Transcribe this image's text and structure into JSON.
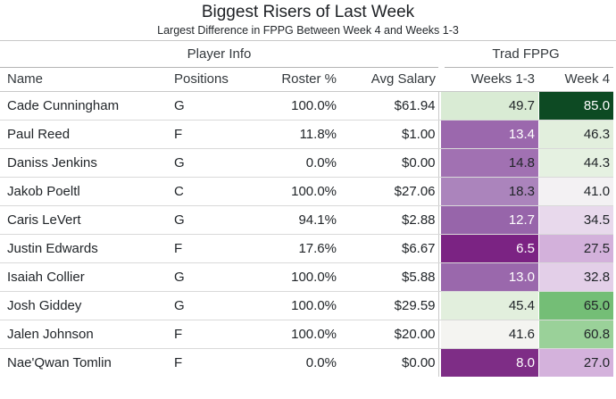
{
  "title": "Biggest Risers of Last Week",
  "subtitle": "Largest Difference in FPPG Between Week 4 and Weeks 1-3",
  "table": {
    "groups": [
      {
        "label": "Player Info"
      },
      {
        "label": "Trad FPPG"
      }
    ],
    "columns": [
      "Name",
      "Positions",
      "Roster %",
      "Avg Salary",
      "Weeks 1-3",
      "Week 4"
    ],
    "rows": [
      {
        "name": "Cade Cunningham",
        "positions": "G",
        "roster_pct": "100.0%",
        "avg_salary": "$61.94",
        "weeks_1_3": {
          "value": "49.7",
          "bg": "#d9ebd4",
          "fg": "#212529"
        },
        "week_4": {
          "value": "85.0",
          "bg": "#0d4a23",
          "fg": "#ffffff"
        }
      },
      {
        "name": "Paul Reed",
        "positions": "F",
        "roster_pct": "11.8%",
        "avg_salary": "$1.00",
        "weeks_1_3": {
          "value": "13.4",
          "bg": "#9b68ad",
          "fg": "#ffffff"
        },
        "week_4": {
          "value": "46.3",
          "bg": "#e2efdd",
          "fg": "#212529"
        }
      },
      {
        "name": "Daniss Jenkins",
        "positions": "G",
        "roster_pct": "0.0%",
        "avg_salary": "$0.00",
        "weeks_1_3": {
          "value": "14.8",
          "bg": "#a171b2",
          "fg": "#212529"
        },
        "week_4": {
          "value": "44.3",
          "bg": "#e5f1e1",
          "fg": "#212529"
        }
      },
      {
        "name": "Jakob Poeltl",
        "positions": "C",
        "roster_pct": "100.0%",
        "avg_salary": "$27.06",
        "weeks_1_3": {
          "value": "18.3",
          "bg": "#ab84bc",
          "fg": "#212529"
        },
        "week_4": {
          "value": "41.0",
          "bg": "#f3f1f3",
          "fg": "#212529"
        }
      },
      {
        "name": "Caris LeVert",
        "positions": "G",
        "roster_pct": "94.1%",
        "avg_salary": "$2.88",
        "weeks_1_3": {
          "value": "12.7",
          "bg": "#9765aa",
          "fg": "#ffffff"
        },
        "week_4": {
          "value": "34.5",
          "bg": "#e8d9ec",
          "fg": "#212529"
        }
      },
      {
        "name": "Justin Edwards",
        "positions": "F",
        "roster_pct": "17.6%",
        "avg_salary": "$6.67",
        "weeks_1_3": {
          "value": "6.5",
          "bg": "#7b2383",
          "fg": "#ffffff"
        },
        "week_4": {
          "value": "27.5",
          "bg": "#d3b1db",
          "fg": "#212529"
        }
      },
      {
        "name": "Isaiah Collier",
        "positions": "G",
        "roster_pct": "100.0%",
        "avg_salary": "$5.88",
        "weeks_1_3": {
          "value": "13.0",
          "bg": "#9a68ac",
          "fg": "#ffffff"
        },
        "week_4": {
          "value": "32.8",
          "bg": "#e3cfe8",
          "fg": "#212529"
        }
      },
      {
        "name": "Josh Giddey",
        "positions": "G",
        "roster_pct": "100.0%",
        "avg_salary": "$29.59",
        "weeks_1_3": {
          "value": "45.4",
          "bg": "#e2efdd",
          "fg": "#212529"
        },
        "week_4": {
          "value": "65.0",
          "bg": "#74be76",
          "fg": "#212529"
        }
      },
      {
        "name": "Jalen Johnson",
        "positions": "F",
        "roster_pct": "100.0%",
        "avg_salary": "$20.00",
        "weeks_1_3": {
          "value": "41.6",
          "bg": "#f4f4f1",
          "fg": "#212529"
        },
        "week_4": {
          "value": "60.8",
          "bg": "#9ad199",
          "fg": "#212529"
        }
      },
      {
        "name": "Nae'Qwan Tomlin",
        "positions": "F",
        "roster_pct": "0.0%",
        "avg_salary": "$0.00",
        "weeks_1_3": {
          "value": "8.0",
          "bg": "#7e2d86",
          "fg": "#ffffff"
        },
        "week_4": {
          "value": "27.0",
          "bg": "#d4b2dc",
          "fg": "#212529"
        }
      }
    ]
  },
  "colors": {
    "background": "#ffffff",
    "text": "#212529",
    "header_text": "#33383c",
    "border_top": "#c8c8c8",
    "group_underline": "#b5b5b5",
    "row_border": "#d9d9d9",
    "vertical_separator": "#c9c9c9",
    "heat_dark_green": "#0d4a23",
    "heat_dark_purple": "#7b2383"
  },
  "chart_data": {
    "type": "table",
    "title": "Biggest Risers of Last Week",
    "subtitle": "Largest Difference in FPPG Between Week 4 and Weeks 1-3",
    "column_groups": [
      {
        "label": "Player Info",
        "columns": [
          "Name",
          "Positions",
          "Roster %",
          "Avg Salary"
        ]
      },
      {
        "label": "Trad FPPG",
        "columns": [
          "Weeks 1-3",
          "Week 4"
        ]
      }
    ],
    "columns": [
      "Name",
      "Positions",
      "Roster %",
      "Avg Salary",
      "Weeks 1-3",
      "Week 4"
    ],
    "rows": [
      [
        "Cade Cunningham",
        "G",
        100.0,
        61.94,
        49.7,
        85.0
      ],
      [
        "Paul Reed",
        "F",
        11.8,
        1.0,
        13.4,
        46.3
      ],
      [
        "Daniss Jenkins",
        "G",
        0.0,
        0.0,
        14.8,
        44.3
      ],
      [
        "Jakob Poeltl",
        "C",
        100.0,
        27.06,
        18.3,
        41.0
      ],
      [
        "Caris LeVert",
        "G",
        94.1,
        2.88,
        12.7,
        34.5
      ],
      [
        "Justin Edwards",
        "F",
        17.6,
        6.67,
        6.5,
        27.5
      ],
      [
        "Isaiah Collier",
        "G",
        100.0,
        5.88,
        13.0,
        32.8
      ],
      [
        "Josh Giddey",
        "G",
        100.0,
        29.59,
        45.4,
        65.0
      ],
      [
        "Jalen Johnson",
        "F",
        100.0,
        20.0,
        41.6,
        60.8
      ],
      [
        "Nae'Qwan Tomlin",
        "F",
        0.0,
        0.0,
        8.0,
        27.0
      ]
    ],
    "heatmap": {
      "applied_columns": [
        "Weeks 1-3",
        "Week 4"
      ],
      "colormap": "purple-white-green diverging (PRGn)",
      "approx_white_midpoint": 41,
      "min_value": 6.5,
      "max_value": 85.0
    }
  }
}
